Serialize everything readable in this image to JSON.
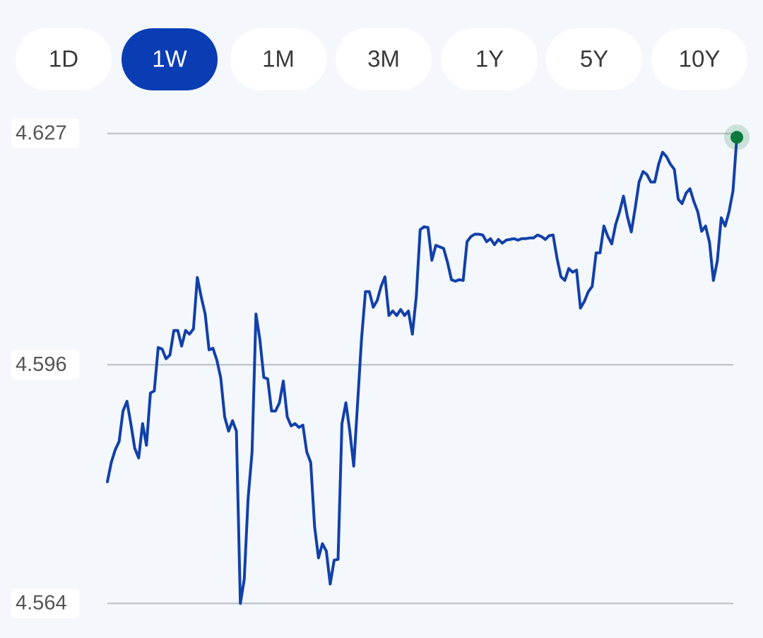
{
  "ranges": [
    "1D",
    "1W",
    "1M",
    "3M",
    "1Y",
    "5Y",
    "10Y"
  ],
  "selected_range": 1,
  "chart_data": {
    "type": "line",
    "color": "#1240ab",
    "marker_color": "#0a7a3c",
    "grid": true,
    "ylim": [
      4.564,
      4.627
    ],
    "yticks": [
      4.627,
      4.596,
      4.564
    ],
    "values": [
      4.5803,
      4.5829,
      4.5846,
      4.5857,
      4.5898,
      4.5911,
      4.5881,
      4.5848,
      4.5835,
      4.5881,
      4.5852,
      4.5922,
      4.5925,
      4.5983,
      4.5981,
      4.5968,
      4.5973,
      4.6006,
      4.6006,
      4.5985,
      4.6006,
      4.6001,
      4.6008,
      4.6077,
      4.6051,
      4.6028,
      4.598,
      4.5982,
      4.5966,
      4.5942,
      4.589,
      4.5871,
      4.5885,
      4.5871,
      4.564,
      4.5672,
      4.5781,
      4.5843,
      4.6028,
      4.5994,
      4.5943,
      4.5941,
      4.5898,
      4.5898,
      4.5909,
      4.5938,
      4.589,
      4.5878,
      4.5881,
      4.5876,
      4.5879,
      4.5843,
      4.5829,
      4.5743,
      4.5701,
      4.572,
      4.571,
      4.5666,
      4.5698,
      4.5699,
      4.5881,
      4.5909,
      4.5871,
      4.5824,
      4.5909,
      4.5994,
      4.6058,
      4.6058,
      4.6037,
      4.6046,
      4.6065,
      4.6078,
      4.6026,
      4.6032,
      4.6026,
      4.6034,
      4.6026,
      4.6032,
      4.6001,
      4.6051,
      4.6141,
      4.6145,
      4.6144,
      4.61,
      4.612,
      4.6118,
      4.6116,
      4.6097,
      4.6074,
      4.6072,
      4.6074,
      4.6073,
      4.6125,
      4.6132,
      4.6135,
      4.6135,
      4.6134,
      4.6125,
      4.6129,
      4.6121,
      4.6128,
      4.6123,
      4.6127,
      4.6128,
      4.6129,
      4.6127,
      4.6129,
      4.6129,
      4.613,
      4.613,
      4.6134,
      4.6132,
      4.6128,
      4.6133,
      4.6134,
      4.6103,
      4.6078,
      4.6073,
      4.6089,
      4.6084,
      4.6087,
      4.6036,
      4.6045,
      4.6058,
      4.6065,
      4.611,
      4.611,
      4.6146,
      4.6132,
      4.6122,
      4.6148,
      4.6165,
      4.6186,
      4.6159,
      4.6138,
      4.617,
      4.6205,
      4.6219,
      4.6215,
      4.6205,
      4.6205,
      4.6229,
      4.6245,
      4.6239,
      4.6229,
      4.6222,
      4.6182,
      4.6176,
      4.619,
      4.6196,
      4.6179,
      4.6165,
      4.6139,
      4.6146,
      4.6124,
      4.6073,
      4.6099,
      4.6157,
      4.6146,
      4.6165,
      4.6193,
      4.6265
    ]
  }
}
